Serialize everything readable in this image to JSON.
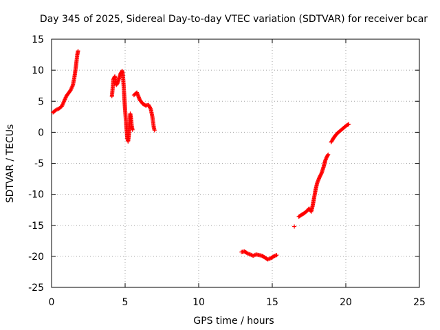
{
  "chart_data": {
    "type": "scatter",
    "title": "Day 345 of 2025, Sidereal Day-to-day VTEC variation (SDTVAR) for receiver bcar",
    "xlabel": "GPS time / hours",
    "ylabel": "SDTVAR / TECUs",
    "xlim": [
      0,
      25
    ],
    "ylim": [
      -25,
      15
    ],
    "xticks": [
      0,
      5,
      10,
      15,
      20,
      25
    ],
    "yticks": [
      -25,
      -20,
      -15,
      -10,
      -5,
      0,
      5,
      10,
      15
    ],
    "grid": true,
    "marker": "+",
    "color": "#ff0000",
    "series": [
      {
        "name": "SDTVAR",
        "segments": [
          [
            [
              0.1,
              3.2
            ],
            [
              0.3,
              3.6
            ],
            [
              0.5,
              3.8
            ],
            [
              0.7,
              4.2
            ],
            [
              0.85,
              5.0
            ],
            [
              1.0,
              5.8
            ],
            [
              1.15,
              6.3
            ],
            [
              1.3,
              6.8
            ],
            [
              1.45,
              7.6
            ],
            [
              1.55,
              8.8
            ],
            [
              1.65,
              10.5
            ],
            [
              1.75,
              12.5
            ],
            [
              1.8,
              13.1
            ]
          ],
          [
            [
              4.1,
              5.8
            ],
            [
              4.15,
              7.0
            ],
            [
              4.2,
              8.5
            ],
            [
              4.3,
              9.0
            ],
            [
              4.35,
              8.2
            ],
            [
              4.4,
              7.6
            ],
            [
              4.5,
              8.0
            ],
            [
              4.6,
              8.8
            ],
            [
              4.7,
              9.5
            ],
            [
              4.8,
              9.9
            ],
            [
              4.85,
              9.2
            ],
            [
              4.9,
              7.5
            ],
            [
              4.95,
              5.5
            ],
            [
              5.0,
              3.5
            ],
            [
              5.05,
              2.0
            ],
            [
              5.1,
              0.5
            ],
            [
              5.15,
              -1.0
            ],
            [
              5.2,
              -1.5
            ],
            [
              5.25,
              -0.5
            ],
            [
              5.3,
              1.5
            ],
            [
              5.35,
              3.0
            ],
            [
              5.4,
              2.2
            ],
            [
              5.45,
              1.0
            ],
            [
              5.5,
              0.4
            ]
          ],
          [
            [
              5.6,
              6.0
            ],
            [
              5.8,
              6.4
            ],
            [
              6.0,
              5.2
            ],
            [
              6.2,
              4.6
            ],
            [
              6.4,
              4.3
            ],
            [
              6.6,
              4.4
            ],
            [
              6.75,
              3.7
            ],
            [
              6.85,
              2.5
            ],
            [
              6.95,
              0.8
            ],
            [
              7.0,
              0.3
            ]
          ],
          [
            [
              12.9,
              -19.3
            ],
            [
              13.1,
              -19.2
            ],
            [
              13.3,
              -19.5
            ],
            [
              13.5,
              -19.7
            ],
            [
              13.7,
              -19.9
            ],
            [
              13.9,
              -19.7
            ],
            [
              14.1,
              -19.8
            ],
            [
              14.3,
              -19.9
            ],
            [
              14.5,
              -20.2
            ],
            [
              14.7,
              -20.5
            ],
            [
              14.9,
              -20.3
            ],
            [
              15.1,
              -20.0
            ],
            [
              15.3,
              -19.8
            ]
          ],
          [
            [
              16.5,
              -15.2
            ]
          ],
          [
            [
              16.8,
              -13.6
            ],
            [
              17.0,
              -13.3
            ],
            [
              17.2,
              -13.0
            ],
            [
              17.4,
              -12.6
            ],
            [
              17.5,
              -12.3
            ],
            [
              17.65,
              -12.8
            ],
            [
              17.75,
              -11.8
            ],
            [
              17.85,
              -10.5
            ],
            [
              17.95,
              -9.2
            ],
            [
              18.05,
              -8.2
            ],
            [
              18.2,
              -7.3
            ],
            [
              18.35,
              -6.6
            ],
            [
              18.5,
              -5.5
            ],
            [
              18.6,
              -4.6
            ],
            [
              18.7,
              -4.0
            ],
            [
              18.8,
              -3.6
            ]
          ],
          [
            [
              19.0,
              -1.6
            ],
            [
              19.15,
              -1.0
            ],
            [
              19.3,
              -0.5
            ],
            [
              19.45,
              -0.1
            ],
            [
              19.6,
              0.2
            ],
            [
              19.75,
              0.5
            ],
            [
              19.9,
              0.8
            ],
            [
              20.05,
              1.1
            ],
            [
              20.2,
              1.3
            ]
          ]
        ]
      }
    ]
  }
}
